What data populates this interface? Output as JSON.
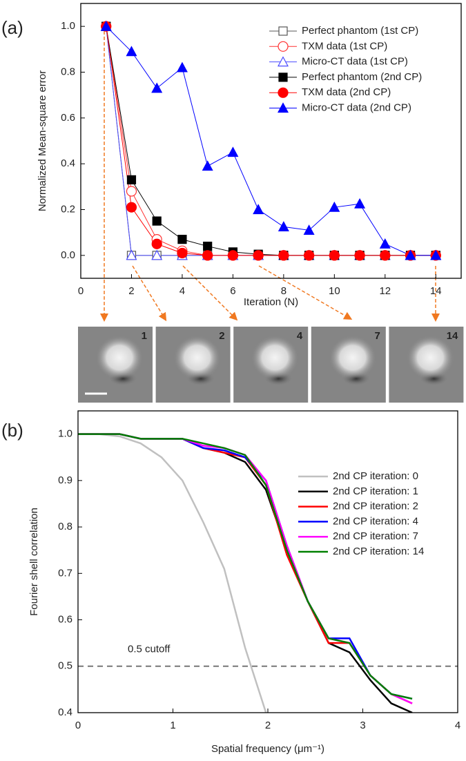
{
  "chart_data": [
    {
      "type": "line",
      "panel_label": "(a)",
      "xlabel": "Iteration (N)",
      "ylabel": "Normalized Mean-square error",
      "x": [
        1,
        2,
        3,
        4,
        5,
        6,
        7,
        8,
        9,
        10,
        11,
        12,
        13,
        14
      ],
      "xlim": [
        0,
        15
      ],
      "xticks": [
        0,
        2,
        4,
        6,
        8,
        10,
        12,
        14
      ],
      "ylim": [
        -0.1,
        1.1
      ],
      "yticks": [
        {
          "value": 0,
          "label": "0.0"
        },
        0.2,
        0.4,
        0.6,
        0.8,
        {
          "value": 1,
          "label": "1.0"
        }
      ],
      "legend": "upper right",
      "series": [
        {
          "name": "Perfect phantom (1st CP)",
          "color": "#555555",
          "marker": "square",
          "filled": false,
          "values": [
            1,
            0,
            0,
            0,
            0,
            0,
            0,
            0,
            0,
            0,
            0,
            0,
            0,
            0
          ]
        },
        {
          "name": "TXM data (1st CP)",
          "color": "#ff3030",
          "marker": "circle",
          "filled": false,
          "values": [
            1,
            0.28,
            0.07,
            0.02,
            0,
            0,
            0,
            0,
            0,
            0,
            0,
            0,
            0,
            0
          ]
        },
        {
          "name": "Micro-CT data (1st CP)",
          "color": "#4a4aff",
          "marker": "triangle",
          "filled": false,
          "values": [
            1,
            0,
            0,
            0,
            0,
            0,
            0,
            0,
            0,
            0,
            0,
            0,
            0,
            0
          ]
        },
        {
          "name": "Perfect phantom (2nd CP)",
          "color": "#000000",
          "marker": "square",
          "filled": true,
          "values": [
            1,
            0.33,
            0.15,
            0.07,
            0.04,
            0.015,
            0.005,
            0,
            0,
            0,
            0,
            0,
            0,
            0
          ]
        },
        {
          "name": "TXM data (2nd CP)",
          "color": "#ff0000",
          "marker": "circle",
          "filled": true,
          "values": [
            1,
            0.21,
            0.05,
            0.01,
            0,
            0,
            0,
            0,
            0,
            0,
            0,
            0,
            0,
            0
          ]
        },
        {
          "name": "Micro-CT data (2nd CP)",
          "color": "#0000ff",
          "marker": "triangle",
          "filled": true,
          "values": [
            1,
            0.89,
            0.73,
            0.82,
            0.39,
            0.45,
            0.2,
            0.125,
            0.11,
            0.21,
            0.225,
            0.05,
            0,
            0
          ]
        }
      ],
      "thumbnails": [
        "1",
        "2",
        "4",
        "7",
        "14"
      ]
    },
    {
      "type": "line",
      "panel_label": "(b)",
      "xlabel": "Spatial frequency (μm⁻¹)",
      "ylabel": "Fourier shell correlation",
      "x": [
        0,
        0.22,
        0.44,
        0.66,
        0.88,
        1.1,
        1.32,
        1.54,
        1.76,
        1.98,
        2.2,
        2.42,
        2.64,
        2.86,
        3.08,
        3.3,
        3.52
      ],
      "xlim": [
        0,
        4
      ],
      "xticks": [
        0,
        1,
        2,
        3,
        4
      ],
      "ylim": [
        0.4,
        1.05
      ],
      "yticks": [
        0.4,
        0.5,
        0.6,
        0.7,
        0.8,
        0.9,
        {
          "value": 1,
          "label": "1.0"
        }
      ],
      "legend": "upper right",
      "cutoff": {
        "value": 0.5,
        "label": "0.5 cutoff"
      },
      "series": [
        {
          "name": "2nd CP iteration: 0",
          "color": "#c0c0c0",
          "values": [
            1,
            1,
            0.995,
            0.98,
            0.95,
            0.9,
            0.81,
            0.71,
            0.54,
            0.4,
            null,
            null,
            null,
            null,
            null,
            null,
            null
          ]
        },
        {
          "name": "2nd CP iteration: 1",
          "color": "#000000",
          "values": [
            1,
            1,
            1,
            0.99,
            0.99,
            0.99,
            0.97,
            0.96,
            0.94,
            0.88,
            0.75,
            0.64,
            0.55,
            0.53,
            0.47,
            0.42,
            0.4
          ]
        },
        {
          "name": "2nd CP iteration: 2",
          "color": "#ff0000",
          "values": [
            1,
            1,
            1,
            0.99,
            0.99,
            0.99,
            0.97,
            0.96,
            0.95,
            0.89,
            0.74,
            0.64,
            0.55,
            0.55,
            0.48,
            0.44,
            0.42
          ]
        },
        {
          "name": "2nd CP iteration: 4",
          "color": "#0000ff",
          "values": [
            1,
            1,
            1,
            0.99,
            0.99,
            0.99,
            0.97,
            0.965,
            0.95,
            0.9,
            0.76,
            0.64,
            0.56,
            0.56,
            0.48,
            0.44,
            0.43
          ]
        },
        {
          "name": "2nd CP iteration: 7",
          "color": "#ff00ff",
          "values": [
            1,
            1,
            1,
            0.99,
            0.99,
            0.99,
            0.975,
            0.97,
            0.955,
            0.9,
            0.76,
            0.64,
            0.56,
            0.55,
            0.48,
            0.44,
            0.42
          ]
        },
        {
          "name": "2nd CP iteration: 14",
          "color": "#008000",
          "values": [
            1,
            1,
            1,
            0.99,
            0.99,
            0.99,
            0.98,
            0.97,
            0.955,
            0.89,
            0.75,
            0.64,
            0.56,
            0.55,
            0.48,
            0.44,
            0.43
          ]
        }
      ]
    }
  ]
}
